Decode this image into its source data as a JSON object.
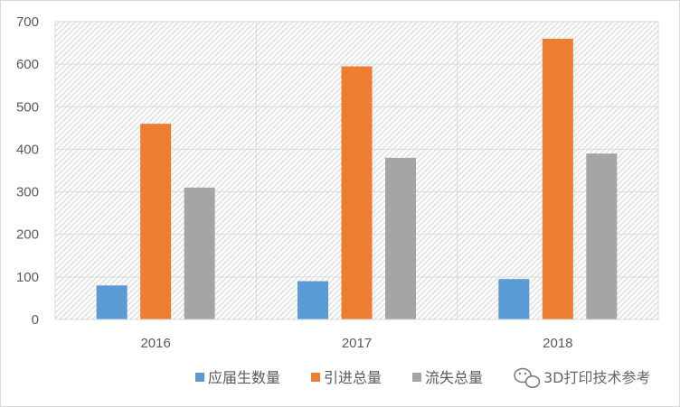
{
  "chart_data": {
    "type": "bar",
    "categories": [
      "2016",
      "2017",
      "2018"
    ],
    "series": [
      {
        "name": "应届生数量",
        "color": "#5b9bd5",
        "values": [
          80,
          90,
          95
        ]
      },
      {
        "name": "引进总量",
        "color": "#ed7d31",
        "values": [
          460,
          595,
          660
        ]
      },
      {
        "name": "流失总量",
        "color": "#a5a5a5",
        "values": [
          310,
          380,
          390
        ]
      }
    ],
    "ylim": [
      0,
      700
    ],
    "yticks": [
      "0",
      "100",
      "200",
      "300",
      "400",
      "500",
      "600",
      "700"
    ],
    "grid": true,
    "legend_position": "bottom"
  },
  "watermark": {
    "icon": "wechat-icon",
    "text": "3D打印技术参考"
  }
}
